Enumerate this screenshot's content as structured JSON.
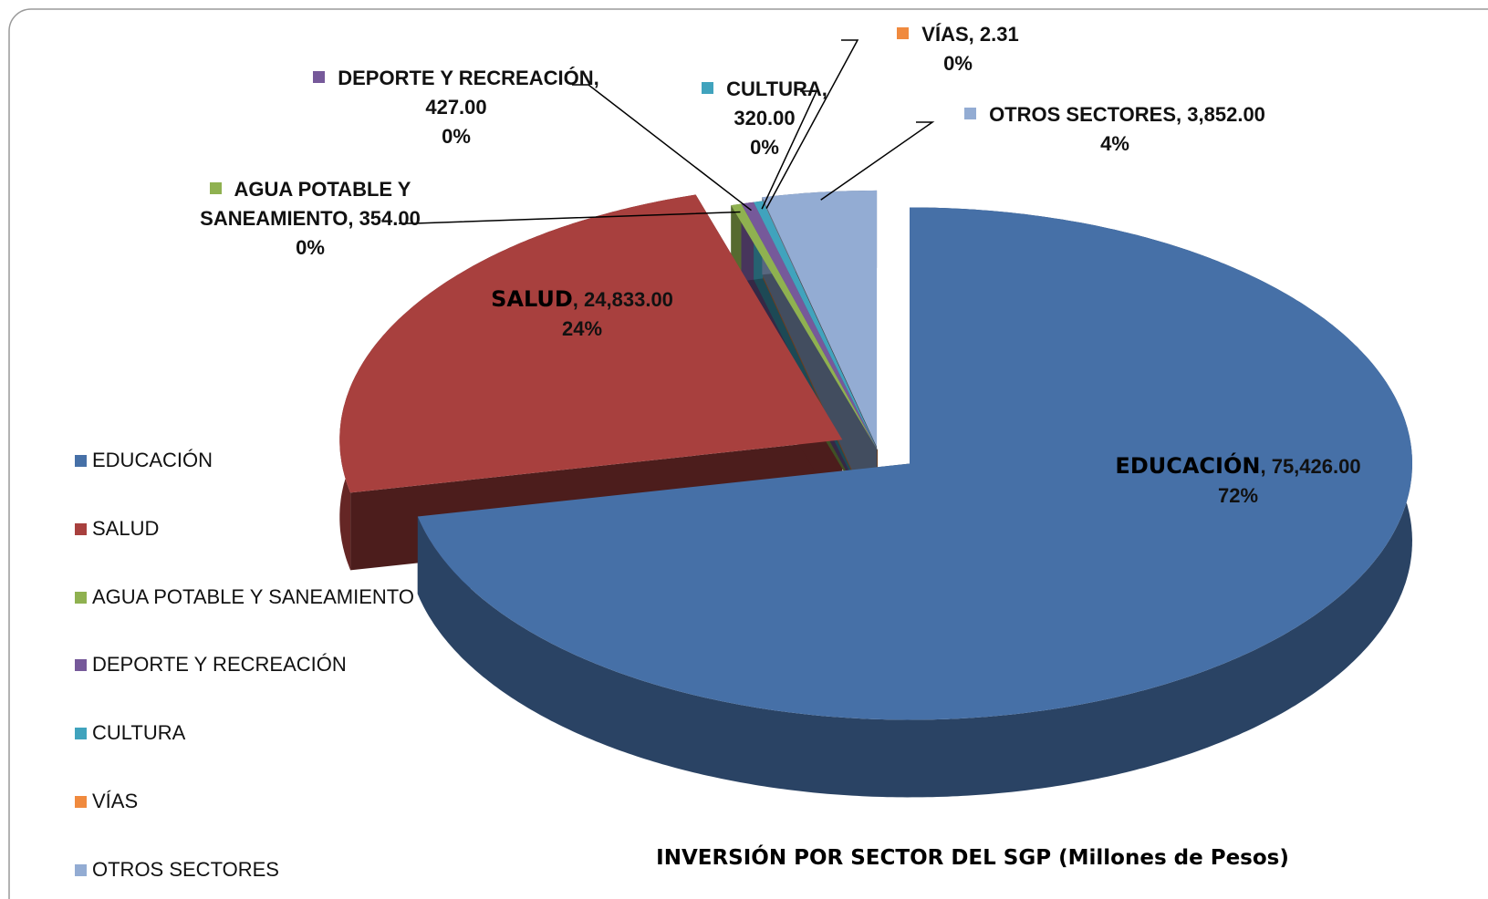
{
  "chart_data": {
    "type": "pie3d",
    "title": "INVERSIÓN POR SECTOR DEL SGP (Millones de Pesos)",
    "categories": [
      "EDUCACIÓN",
      "SALUD",
      "AGUA POTABLE Y SANEAMIENTO",
      "DEPORTE Y RECREACIÓN",
      "CULTURA",
      "VÍAS",
      "OTROS SECTORES"
    ],
    "values": [
      75426,
      24833,
      354,
      427,
      320,
      2.31,
      3852
    ],
    "value_labels": [
      "75,426.00",
      "24,833.00",
      "354.00",
      "427.00",
      "320.00",
      "2.31",
      "3,852.00"
    ],
    "percent_labels": [
      "72%",
      "24%",
      "0%",
      "0%",
      "0%",
      "0%",
      "4%"
    ],
    "label_separator": ",",
    "colors": [
      "#4670a7",
      "#a8403e",
      "#8fb150",
      "#76599a",
      "#40a3bd",
      "#f08a3e",
      "#93acd3"
    ],
    "legend": "left"
  }
}
